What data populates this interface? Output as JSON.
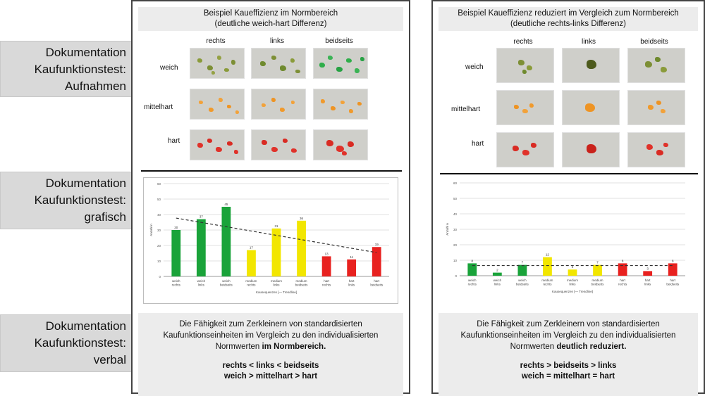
{
  "side_labels": [
    {
      "lines": [
        "Dokumentation",
        "Kaufunktionstest:",
        "Aufnahmen"
      ]
    },
    {
      "lines": [
        "Dokumentation",
        "Kaufunktionstest:",
        "grafisch"
      ]
    },
    {
      "lines": [
        "Dokumentation",
        "Kaufunktionstest:",
        "verbal"
      ]
    }
  ],
  "left": {
    "title_line1": "Beispiel Kaueffizienz im Normbereich",
    "title_line2": "(deutliche weich-hart Differenz)",
    "columns": [
      "rechts",
      "links",
      "beidseits"
    ],
    "rows": [
      "weich",
      "mittelhart",
      "hart"
    ],
    "verbal_line1": "Die Fähigkeit zum Zerkleinern von standardisierten",
    "verbal_line2": "Kaufunktionseinheiten im Vergleich zu den individualisierten",
    "verbal_line3_normal": "Normwerten ",
    "verbal_line3_bold": "im Normbereich.",
    "relation1": "rechts < links < beidseits",
    "relation2": "weich > mittelhart > hart"
  },
  "right": {
    "title_line1": "Beispiel Kaueffizienz reduziert im Vergleich zum Normbereich",
    "title_line2": "(deutliche rechts-links Differenz)",
    "columns": [
      "rechts",
      "links",
      "beidseits"
    ],
    "rows": [
      "weich",
      "mittelhart",
      "hart"
    ],
    "verbal_line1": "Die Fähigkeit zum Zerkleinern von standardisierten",
    "verbal_line2": "Kaufunktionseinheiten im Vergleich zu den individualisierten",
    "verbal_line3_normal": "Normwerten ",
    "verbal_line3_bold": "deutlich reduziert.",
    "relation1": "rechts > beidseits > links",
    "relation2": "weich = mittelhart = hart"
  },
  "colors": {
    "weich": "#1aa33a",
    "mittelhart": "#f2e600",
    "hart": "#e8211f",
    "photo_bg": "#cfcfca"
  },
  "chart_data": [
    {
      "type": "bar",
      "categories": [
        "weich rechts",
        "weich links",
        "weich beidseits",
        "medium rechts",
        "medium links",
        "medium beidseits",
        "hart rechts",
        "hart links",
        "hart beidseits"
      ],
      "values": [
        30,
        37,
        45,
        17,
        31,
        36,
        13,
        11,
        19
      ],
      "ylim": [
        0,
        60
      ],
      "yticks": [
        0,
        10,
        20,
        30,
        40,
        50,
        60
      ],
      "ylabel": "Anzahl n",
      "xlabel": "Kausequenzen [— Trendline]",
      "trendline": "dashed"
    },
    {
      "type": "bar",
      "categories": [
        "weich rechts",
        "weich links",
        "weich beidseits",
        "medium rechts",
        "medium links",
        "medium beidseits",
        "hart rechts",
        "hart links",
        "hart beidseits"
      ],
      "values": [
        8,
        2,
        7,
        12,
        4,
        7,
        8,
        3,
        8
      ],
      "ylim": [
        0,
        60
      ],
      "yticks": [
        0,
        10,
        20,
        30,
        40,
        50,
        60
      ],
      "ylabel": "Anzahl n",
      "xlabel": "Kausequenzen [— Trendline]",
      "trendline": "dashed"
    }
  ]
}
